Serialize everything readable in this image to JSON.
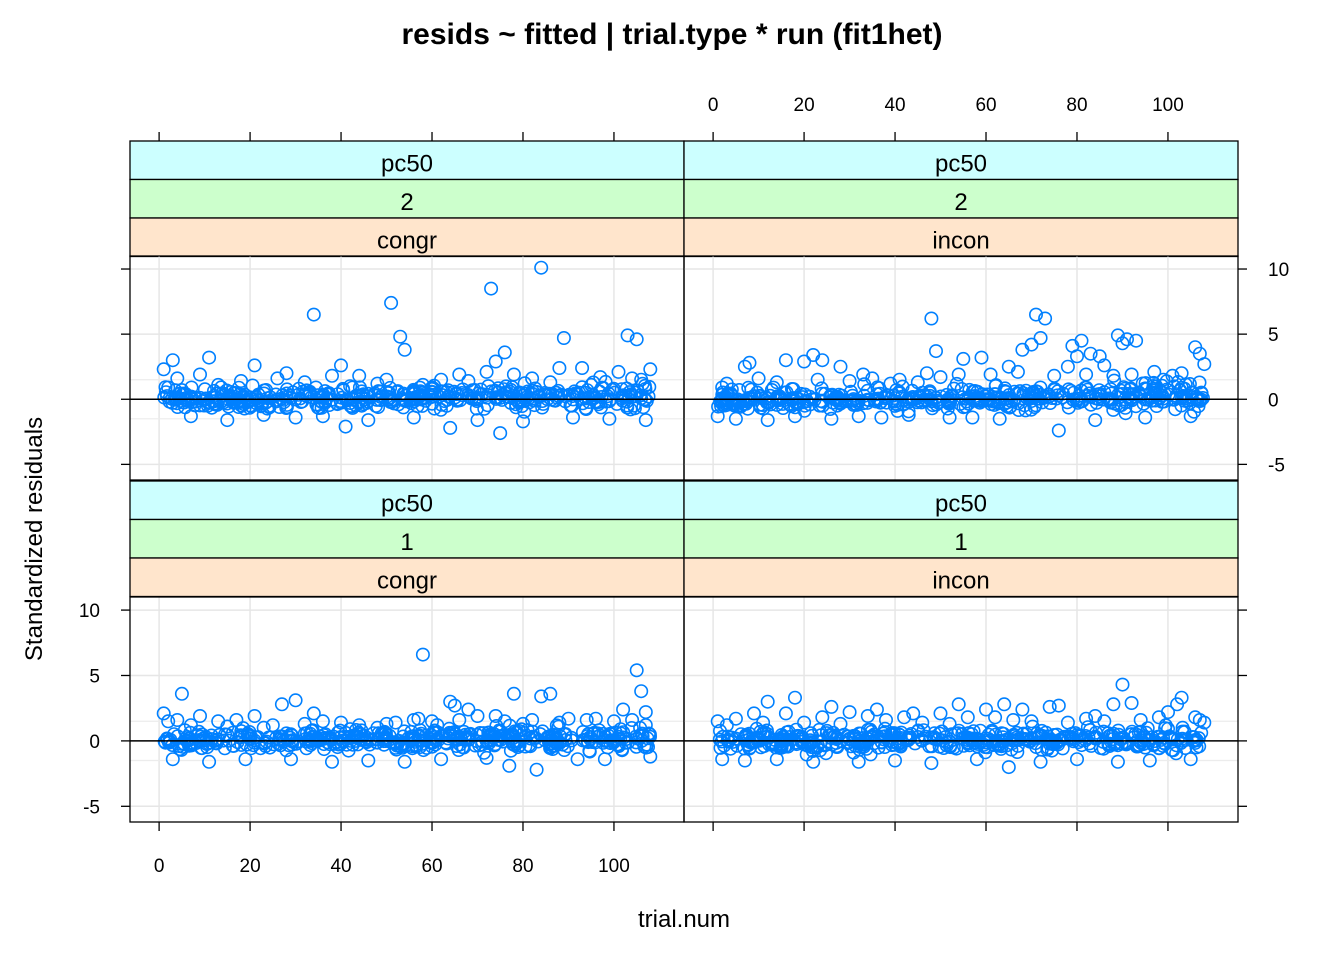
{
  "chart_data": {
    "type": "scatter",
    "title": "resids ~ fitted | trial.type * run (fit1het)",
    "xlabel": "trial.num",
    "ylabel": "Standardized residuals",
    "xlim": [
      -6.4,
      115.4
    ],
    "ylim": [
      -6.2,
      11
    ],
    "x_ticks": [
      0,
      20,
      40,
      60,
      80,
      100
    ],
    "y_ticks": [
      -5,
      0,
      5,
      10
    ],
    "x_tick_labels": [
      "0",
      "20",
      "40",
      "60",
      "80",
      "100"
    ],
    "y_tick_labels": [
      "-5",
      "0",
      "5",
      "10"
    ],
    "grid": true,
    "reference_line_y": 0,
    "marker": {
      "shape": "open-circle",
      "color": "#0080ff"
    },
    "strip_colors": [
      "#ccffff",
      "#ccffcc",
      "#ffe5cc"
    ],
    "panels": [
      {
        "id": "p-congr-2",
        "strips": [
          "pc50",
          "2",
          "congr"
        ],
        "outliers": [
          [
            1,
            2.3
          ],
          [
            2,
            0.9
          ],
          [
            3,
            3.0
          ],
          [
            4,
            1.6
          ],
          [
            5,
            0.7
          ],
          [
            7,
            -1.3
          ],
          [
            9,
            1.9
          ],
          [
            11,
            3.2
          ],
          [
            13,
            1.1
          ],
          [
            15,
            -1.6
          ],
          [
            18,
            1.4
          ],
          [
            21,
            2.6
          ],
          [
            23,
            -1.2
          ],
          [
            26,
            1.6
          ],
          [
            28,
            2.0
          ],
          [
            30,
            -1.4
          ],
          [
            32,
            1.3
          ],
          [
            34,
            6.5
          ],
          [
            36,
            -1.3
          ],
          [
            38,
            1.8
          ],
          [
            40,
            2.6
          ],
          [
            41,
            -2.1
          ],
          [
            42,
            1.0
          ],
          [
            44,
            1.8
          ],
          [
            46,
            -1.6
          ],
          [
            48,
            1.2
          ],
          [
            50,
            1.5
          ],
          [
            51,
            7.4
          ],
          [
            53,
            4.8
          ],
          [
            54,
            3.8
          ],
          [
            56,
            -1.4
          ],
          [
            58,
            1.1
          ],
          [
            60,
            0.9
          ],
          [
            62,
            1.5
          ],
          [
            64,
            -2.2
          ],
          [
            66,
            1.9
          ],
          [
            68,
            1.4
          ],
          [
            70,
            -1.6
          ],
          [
            72,
            2.1
          ],
          [
            73,
            8.5
          ],
          [
            74,
            2.9
          ],
          [
            75,
            -2.6
          ],
          [
            76,
            3.6
          ],
          [
            78,
            1.9
          ],
          [
            80,
            -1.7
          ],
          [
            82,
            1.6
          ],
          [
            84,
            10.1
          ],
          [
            86,
            1.3
          ],
          [
            88,
            2.4
          ],
          [
            89,
            4.7
          ],
          [
            91,
            -1.4
          ],
          [
            93,
            2.4
          ],
          [
            95,
            1.1
          ],
          [
            97,
            1.7
          ],
          [
            99,
            -1.5
          ],
          [
            101,
            2.1
          ],
          [
            103,
            4.9
          ],
          [
            104,
            1.6
          ],
          [
            105,
            4.6
          ],
          [
            106,
            1.5
          ],
          [
            107,
            -1.6
          ],
          [
            108,
            2.3
          ]
        ],
        "band": {
          "lo": -1.1,
          "hi": 1.1,
          "hi_trend": 0.5,
          "count": 480,
          "seed": 11
        }
      },
      {
        "id": "p-incon-2",
        "strips": [
          "pc50",
          "2",
          "incon"
        ],
        "outliers": [
          [
            1,
            -1.3
          ],
          [
            2,
            0.9
          ],
          [
            3,
            1.2
          ],
          [
            5,
            -1.5
          ],
          [
            7,
            2.5
          ],
          [
            8,
            2.8
          ],
          [
            10,
            1.6
          ],
          [
            12,
            -1.6
          ],
          [
            14,
            1.3
          ],
          [
            16,
            3.0
          ],
          [
            18,
            -1.3
          ],
          [
            20,
            2.9
          ],
          [
            22,
            3.4
          ],
          [
            23,
            1.5
          ],
          [
            24,
            3.0
          ],
          [
            26,
            -1.5
          ],
          [
            28,
            2.5
          ],
          [
            30,
            1.4
          ],
          [
            32,
            -1.3
          ],
          [
            33,
            1.9
          ],
          [
            35,
            1.6
          ],
          [
            37,
            -1.4
          ],
          [
            39,
            1.2
          ],
          [
            41,
            1.5
          ],
          [
            43,
            -1.2
          ],
          [
            45,
            1.3
          ],
          [
            47,
            2.0
          ],
          [
            48,
            6.2
          ],
          [
            49,
            3.7
          ],
          [
            50,
            1.7
          ],
          [
            52,
            -1.4
          ],
          [
            54,
            1.9
          ],
          [
            55,
            3.1
          ],
          [
            57,
            -1.4
          ],
          [
            59,
            3.2
          ],
          [
            61,
            1.9
          ],
          [
            63,
            -1.5
          ],
          [
            65,
            2.5
          ],
          [
            67,
            2.1
          ],
          [
            68,
            3.8
          ],
          [
            70,
            4.2
          ],
          [
            71,
            6.5
          ],
          [
            72,
            4.7
          ],
          [
            73,
            6.2
          ],
          [
            75,
            1.8
          ],
          [
            76,
            -2.4
          ],
          [
            78,
            2.5
          ],
          [
            79,
            4.1
          ],
          [
            80,
            3.3
          ],
          [
            81,
            4.5
          ],
          [
            82,
            1.9
          ],
          [
            83,
            3.5
          ],
          [
            84,
            -1.6
          ],
          [
            85,
            3.3
          ],
          [
            86,
            2.6
          ],
          [
            88,
            1.8
          ],
          [
            89,
            4.9
          ],
          [
            90,
            4.3
          ],
          [
            91,
            4.6
          ],
          [
            92,
            1.9
          ],
          [
            93,
            4.5
          ],
          [
            95,
            -1.4
          ],
          [
            97,
            2.1
          ],
          [
            99,
            1.5
          ],
          [
            101,
            1.8
          ],
          [
            103,
            2.0
          ],
          [
            105,
            -1.3
          ],
          [
            106,
            4.0
          ],
          [
            107,
            3.5
          ],
          [
            108,
            2.7
          ]
        ],
        "band": {
          "lo": -1.1,
          "hi": 1.0,
          "hi_trend": 0.7,
          "count": 480,
          "seed": 23
        }
      },
      {
        "id": "p-congr-1",
        "strips": [
          "pc50",
          "1",
          "congr"
        ],
        "outliers": [
          [
            1,
            2.1
          ],
          [
            2,
            1.5
          ],
          [
            3,
            -1.4
          ],
          [
            4,
            1.6
          ],
          [
            5,
            3.6
          ],
          [
            7,
            1.2
          ],
          [
            9,
            1.9
          ],
          [
            11,
            -1.6
          ],
          [
            13,
            1.5
          ],
          [
            15,
            1.1
          ],
          [
            17,
            1.6
          ],
          [
            19,
            -1.4
          ],
          [
            21,
            1.9
          ],
          [
            23,
            1.0
          ],
          [
            25,
            1.2
          ],
          [
            27,
            2.8
          ],
          [
            29,
            -1.4
          ],
          [
            30,
            3.1
          ],
          [
            32,
            1.3
          ],
          [
            34,
            2.1
          ],
          [
            36,
            1.5
          ],
          [
            38,
            -1.6
          ],
          [
            40,
            1.4
          ],
          [
            42,
            0.9
          ],
          [
            44,
            1.2
          ],
          [
            46,
            -1.5
          ],
          [
            48,
            1.0
          ],
          [
            50,
            1.3
          ],
          [
            52,
            1.4
          ],
          [
            54,
            -1.6
          ],
          [
            56,
            1.6
          ],
          [
            57,
            1.7
          ],
          [
            58,
            6.6
          ],
          [
            60,
            1.5
          ],
          [
            62,
            -1.4
          ],
          [
            64,
            3.0
          ],
          [
            65,
            2.7
          ],
          [
            66,
            1.6
          ],
          [
            68,
            2.4
          ],
          [
            70,
            1.9
          ],
          [
            72,
            -1.3
          ],
          [
            74,
            1.9
          ],
          [
            76,
            1.5
          ],
          [
            77,
            -1.9
          ],
          [
            78,
            3.6
          ],
          [
            80,
            1.3
          ],
          [
            82,
            1.6
          ],
          [
            83,
            -2.2
          ],
          [
            84,
            3.4
          ],
          [
            86,
            3.6
          ],
          [
            88,
            1.4
          ],
          [
            90,
            1.7
          ],
          [
            92,
            -1.4
          ],
          [
            94,
            1.6
          ],
          [
            96,
            1.7
          ],
          [
            98,
            -1.4
          ],
          [
            100,
            1.5
          ],
          [
            102,
            2.4
          ],
          [
            104,
            1.6
          ],
          [
            105,
            5.4
          ],
          [
            106,
            3.8
          ],
          [
            107,
            2.2
          ],
          [
            108,
            -1.2
          ]
        ],
        "band": {
          "lo": -1.0,
          "hi": 1.0,
          "hi_trend": 0.5,
          "count": 480,
          "seed": 37
        }
      },
      {
        "id": "p-incon-1",
        "strips": [
          "pc50",
          "1",
          "incon"
        ],
        "outliers": [
          [
            1,
            1.5
          ],
          [
            2,
            -1.4
          ],
          [
            3,
            1.2
          ],
          [
            5,
            1.7
          ],
          [
            7,
            -1.5
          ],
          [
            9,
            2.1
          ],
          [
            11,
            1.4
          ],
          [
            12,
            3.0
          ],
          [
            14,
            -1.4
          ],
          [
            16,
            2.1
          ],
          [
            18,
            3.3
          ],
          [
            20,
            1.4
          ],
          [
            22,
            -1.6
          ],
          [
            24,
            1.8
          ],
          [
            26,
            2.6
          ],
          [
            28,
            1.3
          ],
          [
            30,
            2.2
          ],
          [
            32,
            -1.6
          ],
          [
            34,
            1.9
          ],
          [
            36,
            2.4
          ],
          [
            38,
            1.6
          ],
          [
            40,
            -1.5
          ],
          [
            42,
            1.8
          ],
          [
            44,
            2.1
          ],
          [
            46,
            1.4
          ],
          [
            48,
            -1.7
          ],
          [
            50,
            2.1
          ],
          [
            52,
            1.3
          ],
          [
            54,
            2.8
          ],
          [
            56,
            1.8
          ],
          [
            58,
            -1.4
          ],
          [
            60,
            2.4
          ],
          [
            62,
            1.8
          ],
          [
            64,
            2.8
          ],
          [
            65,
            -2.0
          ],
          [
            66,
            1.6
          ],
          [
            68,
            2.4
          ],
          [
            70,
            1.5
          ],
          [
            72,
            -1.6
          ],
          [
            74,
            2.6
          ],
          [
            76,
            2.7
          ],
          [
            78,
            1.4
          ],
          [
            80,
            -1.4
          ],
          [
            82,
            1.7
          ],
          [
            84,
            1.9
          ],
          [
            86,
            1.5
          ],
          [
            88,
            2.8
          ],
          [
            89,
            -1.6
          ],
          [
            90,
            4.3
          ],
          [
            92,
            2.9
          ],
          [
            94,
            1.6
          ],
          [
            96,
            -1.5
          ],
          [
            98,
            1.8
          ],
          [
            100,
            2.2
          ],
          [
            102,
            2.8
          ],
          [
            103,
            3.3
          ],
          [
            105,
            -1.4
          ],
          [
            106,
            1.8
          ],
          [
            107,
            1.6
          ],
          [
            108,
            1.4
          ]
        ],
        "band": {
          "lo": -1.1,
          "hi": 1.1,
          "hi_trend": 0.3,
          "count": 480,
          "seed": 53
        }
      }
    ]
  }
}
